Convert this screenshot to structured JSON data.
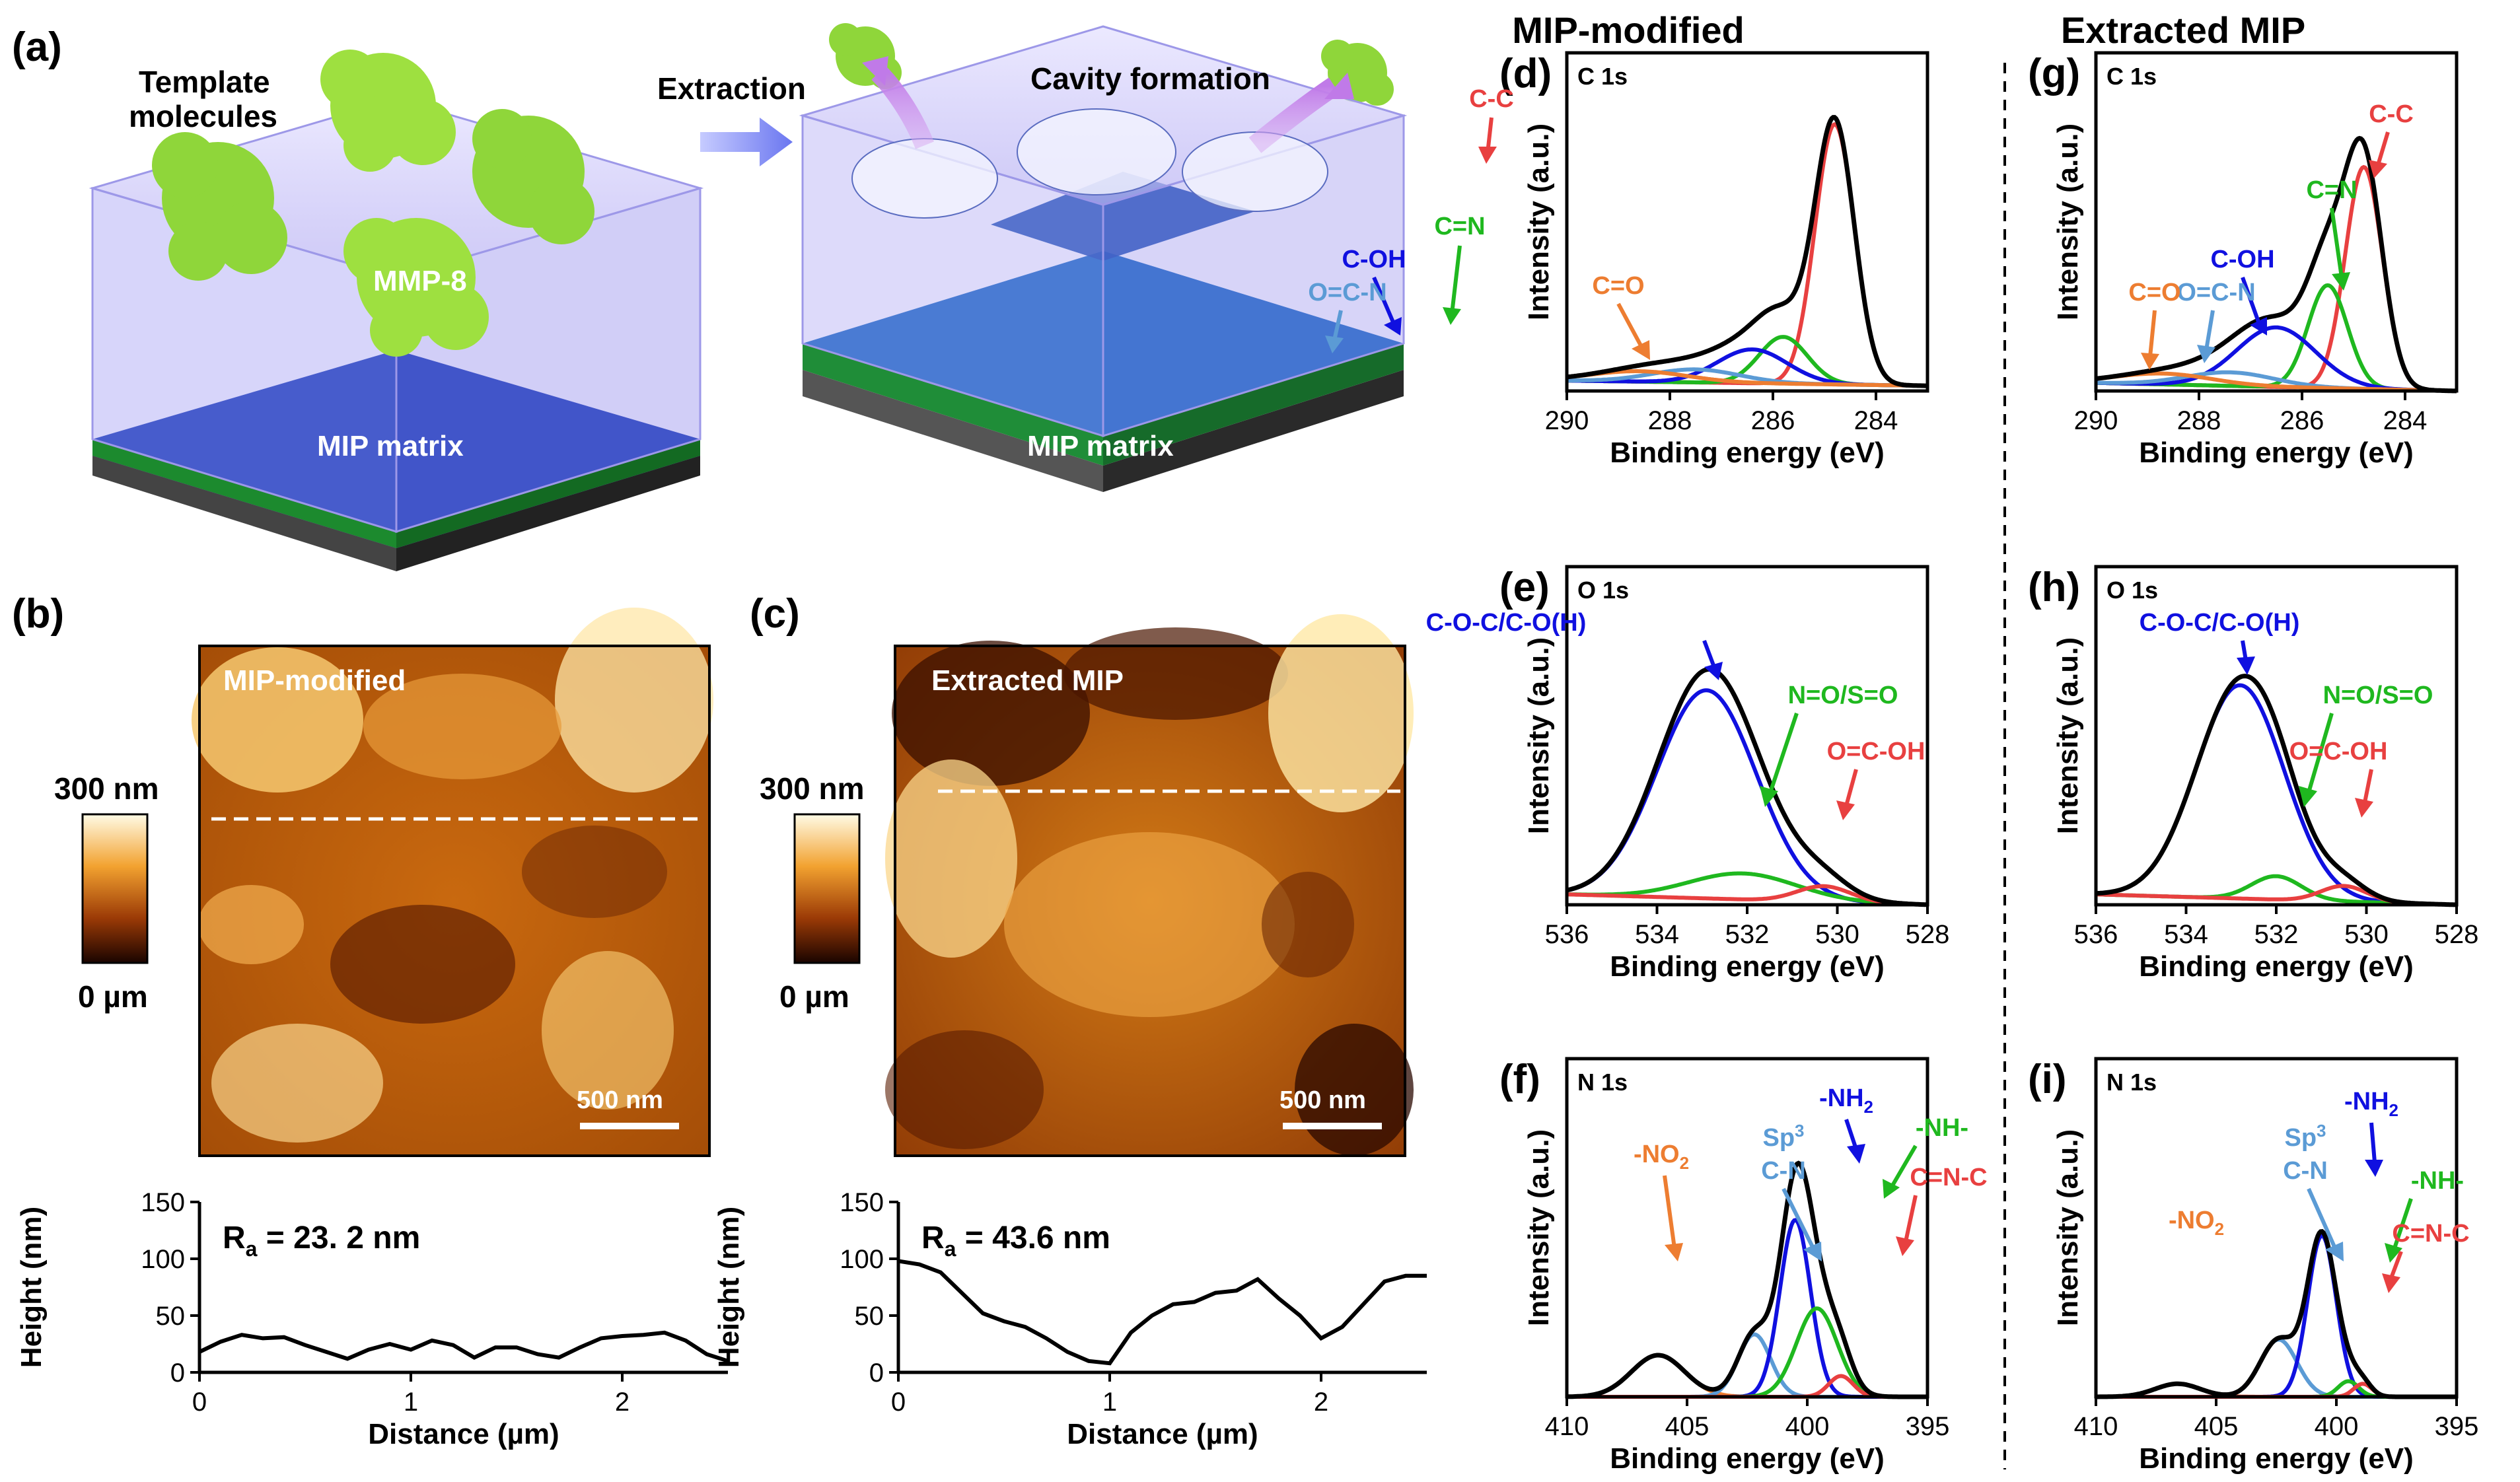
{
  "panel_a": {
    "label": "(a)",
    "template_line1": "Template",
    "template_line2": "molecules",
    "mmp": "MMP-8",
    "matrix_left": "MIP matrix",
    "extraction": "Extraction",
    "cavity": "Cavity formation",
    "matrix_right": "MIP matrix"
  },
  "panel_b": {
    "label": "(b)",
    "image_title": "MIP-modified",
    "scale_top": "300 nm",
    "scale_bottom": "0 µm",
    "scalebar": "500 nm"
  },
  "panel_c": {
    "label": "(c)",
    "image_title": "Extracted MIP",
    "scale_top": "300 nm",
    "scale_bottom": "0 µm",
    "scalebar": "500 nm"
  },
  "column_titles": {
    "left": "MIP-modified",
    "right": "Extracted MIP"
  },
  "peak_labels": {
    "c": {
      "cc": "C-C",
      "cn": "C=N",
      "coh": "C-OH",
      "ocn": "O=C-N",
      "co": "C=O"
    },
    "o": {
      "coc": "C-O-C/C-O(H)",
      "no": "N=O/S=O",
      "ocoh": "O=C-OH"
    },
    "n": {
      "sp": "Sp",
      "sp_sup": "3",
      "cn": "C-N",
      "nh2": "-NH",
      "nh2_sub": "2",
      "nh": "-NH-",
      "cnc": "C=N-C",
      "no2": "-NO",
      "no2_sub": "2"
    }
  },
  "colors": {
    "envelope": "#000000",
    "cc": "#e84040",
    "cn": "#1fb81f",
    "coh": "#1010e0",
    "ocn": "#5b9bd5",
    "co": "#ed7d31",
    "afm_dark": "#2a0800",
    "afm_mid": "#c8650b",
    "afm_light": "#fff8e0"
  },
  "chart_data": [
    {
      "id": "b-profile",
      "type": "line",
      "title": "",
      "annotation_main": "R",
      "annotation_sub": "a",
      "annotation_value": " = 23. 2 nm",
      "xlabel": "Distance (µm)",
      "ylabel": "Height (nm)",
      "xlim": [
        0,
        2.5
      ],
      "ylim": [
        0,
        150
      ],
      "xticks": [
        "0",
        "1",
        "2"
      ],
      "xtick_values": [
        0,
        1,
        2
      ],
      "yticks": [
        "0",
        "50",
        "100",
        "150"
      ],
      "ytick_values": [
        0,
        50,
        100,
        150
      ],
      "x": [
        0,
        0.1,
        0.2,
        0.3,
        0.4,
        0.5,
        0.6,
        0.7,
        0.8,
        0.9,
        1.0,
        1.1,
        1.2,
        1.3,
        1.4,
        1.5,
        1.6,
        1.7,
        1.8,
        1.9,
        2.0,
        2.1,
        2.2,
        2.3,
        2.4,
        2.5
      ],
      "y": [
        18,
        27,
        33,
        30,
        31,
        24,
        18,
        12,
        20,
        25,
        20,
        28,
        24,
        13,
        22,
        22,
        16,
        13,
        22,
        30,
        32,
        33,
        35,
        28,
        16,
        10
      ]
    },
    {
      "id": "c-profile",
      "type": "line",
      "title": "",
      "annotation_main": "R",
      "annotation_sub": "a",
      "annotation_value": " = 43.6 nm",
      "xlabel": "Distance (µm)",
      "ylabel": "Height (nm)",
      "xlim": [
        0,
        2.5
      ],
      "ylim": [
        0,
        150
      ],
      "xticks": [
        "0",
        "1",
        "2"
      ],
      "xtick_values": [
        0,
        1,
        2
      ],
      "yticks": [
        "0",
        "50",
        "100",
        "150"
      ],
      "ytick_values": [
        0,
        50,
        100,
        150
      ],
      "x": [
        0,
        0.1,
        0.2,
        0.3,
        0.4,
        0.5,
        0.6,
        0.7,
        0.8,
        0.9,
        1.0,
        1.1,
        1.2,
        1.3,
        1.4,
        1.5,
        1.6,
        1.7,
        1.8,
        1.9,
        2.0,
        2.1,
        2.2,
        2.3,
        2.4,
        2.5
      ],
      "y": [
        98,
        95,
        88,
        70,
        52,
        45,
        40,
        30,
        18,
        10,
        8,
        35,
        50,
        60,
        62,
        70,
        72,
        82,
        65,
        50,
        30,
        40,
        60,
        80,
        85,
        85
      ]
    },
    {
      "id": "d-C1s",
      "type": "line",
      "panel_label": "(d)",
      "title": "C 1s",
      "xlabel": "Binding energy (eV)",
      "ylabel": "Intensity (a.u.)",
      "xlim": [
        290,
        283
      ],
      "xticks": [
        "290",
        "288",
        "286",
        "284"
      ],
      "xtick_values": [
        290,
        288,
        286,
        284
      ],
      "ylim": [
        0,
        1.3
      ],
      "baseline_start": 0.04,
      "baseline_end": 0.02,
      "peaks": [
        {
          "name": "C-C",
          "center": 284.8,
          "fwhm": 0.9,
          "height": 1.0,
          "color": "#e84040"
        },
        {
          "name": "C=N",
          "center": 285.8,
          "fwhm": 1.1,
          "height": 0.18,
          "color": "#1fb81f"
        },
        {
          "name": "C-OH",
          "center": 286.4,
          "fwhm": 1.6,
          "height": 0.13,
          "color": "#1010e0"
        },
        {
          "name": "O=C-N",
          "center": 287.5,
          "fwhm": 2.0,
          "height": 0.05,
          "color": "#5b9bd5"
        },
        {
          "name": "C=O",
          "center": 288.6,
          "fwhm": 2.2,
          "height": 0.04,
          "color": "#ed7d31"
        }
      ]
    },
    {
      "id": "g-C1s",
      "type": "line",
      "panel_label": "(g)",
      "title": "C 1s",
      "xlabel": "Binding energy (eV)",
      "ylabel": "Intensity (a.u.)",
      "xlim": [
        290,
        283
      ],
      "xticks": [
        "290",
        "288",
        "286",
        "284"
      ],
      "xtick_values": [
        290,
        288,
        286,
        284
      ],
      "ylim": [
        0,
        1.25
      ],
      "baseline_start": 0.03,
      "baseline_end": 0.0,
      "peaks": [
        {
          "name": "C-C",
          "center": 284.8,
          "fwhm": 0.85,
          "height": 0.82,
          "color": "#e84040"
        },
        {
          "name": "C=N",
          "center": 285.5,
          "fwhm": 0.9,
          "height": 0.38,
          "color": "#1fb81f"
        },
        {
          "name": "C-OH",
          "center": 286.5,
          "fwhm": 1.8,
          "height": 0.22,
          "color": "#1010e0"
        },
        {
          "name": "O=C-N",
          "center": 287.4,
          "fwhm": 2.0,
          "height": 0.05,
          "color": "#5b9bd5"
        },
        {
          "name": "C=O",
          "center": 288.7,
          "fwhm": 2.2,
          "height": 0.04,
          "color": "#ed7d31"
        }
      ]
    },
    {
      "id": "e-O1s",
      "type": "line",
      "panel_label": "(e)",
      "title": "O 1s",
      "xlabel": "Binding energy (eV)",
      "ylabel": "Intensity (a.u.)",
      "xlim": [
        536,
        528
      ],
      "xticks": [
        "536",
        "534",
        "532",
        "530",
        "528"
      ],
      "xtick_values": [
        536,
        534,
        532,
        530,
        528
      ],
      "ylim": [
        0,
        1.3
      ],
      "baseline_start": 0.04,
      "baseline_end": 0.0,
      "peaks": [
        {
          "name": "C-O-C/C-O(H)",
          "center": 532.9,
          "fwhm": 2.6,
          "height": 0.8,
          "color": "#1010e0"
        },
        {
          "name": "N=O/S=O",
          "center": 532.1,
          "fwhm": 2.8,
          "height": 0.1,
          "color": "#1fb81f"
        },
        {
          "name": "O=C-OH",
          "center": 530.3,
          "fwhm": 1.4,
          "height": 0.06,
          "color": "#e84040"
        }
      ]
    },
    {
      "id": "h-O1s",
      "type": "line",
      "panel_label": "(h)",
      "title": "O 1s",
      "xlabel": "Binding energy (eV)",
      "ylabel": "Intensity (a.u.)",
      "xlim": [
        536,
        528
      ],
      "xticks": [
        "536",
        "534",
        "532",
        "530",
        "528"
      ],
      "xtick_values": [
        536,
        534,
        532,
        530,
        528
      ],
      "ylim": [
        0,
        1.3
      ],
      "baseline_start": 0.04,
      "baseline_end": 0.0,
      "peaks": [
        {
          "name": "C-O-C/C-O(H)",
          "center": 532.8,
          "fwhm": 2.3,
          "height": 0.82,
          "color": "#1010e0"
        },
        {
          "name": "N=O/S=O",
          "center": 532.0,
          "fwhm": 1.3,
          "height": 0.09,
          "color": "#1fb81f"
        },
        {
          "name": "O=C-OH",
          "center": 530.5,
          "fwhm": 1.2,
          "height": 0.06,
          "color": "#e84040"
        }
      ]
    },
    {
      "id": "f-N1s",
      "type": "line",
      "panel_label": "(f)",
      "title": "N 1s",
      "xlabel": "Binding energy (eV)",
      "ylabel": "Intensity (a.u.)",
      "xlim": [
        410,
        395
      ],
      "xticks": [
        "410",
        "405",
        "400",
        "395"
      ],
      "xtick_values": [
        410,
        405,
        400,
        395
      ],
      "ylim": [
        0,
        1.3
      ],
      "baseline_start": 0.0,
      "baseline_end": 0.0,
      "peaks": [
        {
          "name": "-NO2",
          "center": 406.2,
          "fwhm": 2.6,
          "height": 0.16,
          "color": "#ed7d31"
        },
        {
          "name": "Sp3 C-N",
          "center": 402.2,
          "fwhm": 1.6,
          "height": 0.24,
          "color": "#5b9bd5"
        },
        {
          "name": "-NH2",
          "center": 400.5,
          "fwhm": 1.5,
          "height": 0.68,
          "color": "#1010e0"
        },
        {
          "name": "-NH-",
          "center": 399.6,
          "fwhm": 2.0,
          "height": 0.34,
          "color": "#1fb81f"
        },
        {
          "name": "C=N-C",
          "center": 398.6,
          "fwhm": 1.2,
          "height": 0.08,
          "color": "#e84040"
        }
      ]
    },
    {
      "id": "i-N1s",
      "type": "line",
      "panel_label": "(i)",
      "title": "N 1s",
      "xlabel": "Binding energy (eV)",
      "ylabel": "Intensity (a.u.)",
      "xlim": [
        410,
        395
      ],
      "xticks": [
        "410",
        "405",
        "400",
        "395"
      ],
      "xtick_values": [
        410,
        405,
        400,
        395
      ],
      "ylim": [
        0,
        1.3
      ],
      "baseline_start": 0.0,
      "baseline_end": 0.0,
      "peaks": [
        {
          "name": "-NO2",
          "center": 406.6,
          "fwhm": 2.2,
          "height": 0.05,
          "color": "#ed7d31"
        },
        {
          "name": "Sp3 C-N",
          "center": 402.4,
          "fwhm": 1.8,
          "height": 0.22,
          "color": "#5b9bd5"
        },
        {
          "name": "-NH2",
          "center": 400.6,
          "fwhm": 1.4,
          "height": 0.62,
          "color": "#1010e0"
        },
        {
          "name": "-NH-",
          "center": 399.5,
          "fwhm": 1.0,
          "height": 0.06,
          "color": "#1fb81f"
        },
        {
          "name": "C=N-C",
          "center": 398.9,
          "fwhm": 0.9,
          "height": 0.05,
          "color": "#e84040"
        }
      ]
    }
  ]
}
